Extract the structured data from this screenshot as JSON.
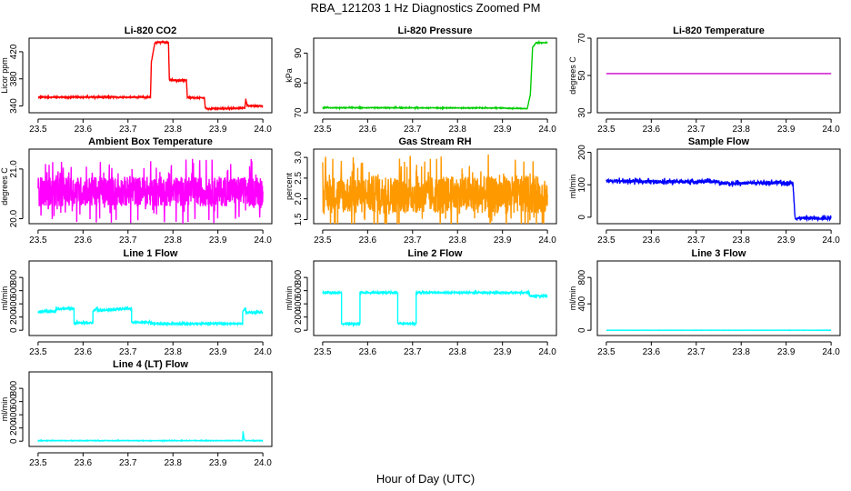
{
  "figure": {
    "main_title": "RBA_121203  1 Hz Diagnostics Zoomed PM",
    "x_label": "Hour of Day (UTC)"
  },
  "chart_data": [
    {
      "type": "line",
      "title": "Li-820 CO2",
      "ylabel": "Licor ppm",
      "color": "#ff0000",
      "xlim": [
        23.5,
        24.0
      ],
      "ylim": [
        330,
        440
      ],
      "x_ticks": [
        23.5,
        23.6,
        23.7,
        23.8,
        23.9,
        24.0
      ],
      "x_tick_labels": [
        "23.5",
        "23.6",
        "23.7",
        "23.8",
        "23.9",
        "24.0"
      ],
      "y_ticks": [
        340,
        380,
        420
      ],
      "y_tick_labels": [
        "340",
        "380",
        "420"
      ],
      "series": [
        {
          "x": [
            23.5,
            23.75,
            23.752,
            23.76,
            23.79,
            23.792,
            23.8,
            23.83,
            23.832,
            23.84,
            23.87,
            23.872,
            23.9,
            23.96,
            23.962,
            23.965,
            23.97,
            24.0
          ],
          "y": [
            353,
            353,
            405,
            434,
            434,
            379,
            378,
            378,
            353,
            352,
            352,
            336,
            336,
            337,
            350,
            341,
            340,
            340
          ],
          "noise": 0.8
        }
      ]
    },
    {
      "type": "line",
      "title": "Li-820 Pressure",
      "ylabel": "kPa",
      "color": "#00cc00",
      "xlim": [
        23.5,
        24.0
      ],
      "ylim": [
        70,
        95
      ],
      "x_ticks": [
        23.5,
        23.6,
        23.7,
        23.8,
        23.9,
        24.0
      ],
      "x_tick_labels": [
        "23.5",
        "23.6",
        "23.7",
        "23.8",
        "23.9",
        "24.0"
      ],
      "y_ticks": [
        70,
        80,
        90
      ],
      "y_tick_labels": [
        "70",
        "80",
        "90"
      ],
      "series": [
        {
          "x": [
            23.5,
            23.9,
            23.91,
            23.955,
            23.962,
            23.967,
            23.975,
            24.0
          ],
          "y": [
            71.7,
            71.6,
            71.5,
            71.4,
            76,
            92,
            93.5,
            93.5
          ],
          "noise": 0.1
        }
      ]
    },
    {
      "type": "line",
      "title": "Li-820 Temperature",
      "ylabel": "degrees C",
      "color": "#cc00cc",
      "xlim": [
        23.5,
        24.0
      ],
      "ylim": [
        30,
        70
      ],
      "x_ticks": [
        23.5,
        23.6,
        23.7,
        23.8,
        23.9,
        24.0
      ],
      "x_tick_labels": [
        "23.5",
        "23.6",
        "23.7",
        "23.8",
        "23.9",
        "24.0"
      ],
      "y_ticks": [
        30,
        50,
        70
      ],
      "y_tick_labels": [
        "30",
        "50",
        "70"
      ],
      "series": [
        {
          "x": [
            23.5,
            24.0
          ],
          "y": [
            51,
            51
          ],
          "noise": 0
        }
      ]
    },
    {
      "type": "line",
      "title": "Ambient Box Temperature",
      "ylabel": "degrees C",
      "color": "#ff00ff",
      "xlim": [
        23.5,
        24.0
      ],
      "ylim": [
        19.9,
        21.4
      ],
      "x_ticks": [
        23.5,
        23.6,
        23.7,
        23.8,
        23.9,
        24.0
      ],
      "x_tick_labels": [
        "23.5",
        "23.6",
        "23.7",
        "23.8",
        "23.9",
        "24.0"
      ],
      "y_ticks": [
        20.0,
        21.0
      ],
      "y_tick_labels": [
        "20.0",
        "21.0"
      ],
      "series": [
        {
          "x": [
            23.5,
            24.0
          ],
          "y": [
            20.55,
            20.55
          ],
          "noise": 0.3
        }
      ]
    },
    {
      "type": "line",
      "title": "Gas Stream RH",
      "ylabel": "percent",
      "color": "#ff9900",
      "xlim": [
        23.5,
        24.0
      ],
      "ylim": [
        1.4,
        3.2
      ],
      "x_ticks": [
        23.5,
        23.6,
        23.7,
        23.8,
        23.9,
        24.0
      ],
      "x_tick_labels": [
        "23.5",
        "23.6",
        "23.7",
        "23.8",
        "23.9",
        "24.0"
      ],
      "y_ticks": [
        1.5,
        2.0,
        2.5,
        3.0
      ],
      "y_tick_labels": [
        "1.5",
        "2.0",
        "2.5",
        "3.0"
      ],
      "series": [
        {
          "x": [
            23.5,
            24.0
          ],
          "y": [
            2.1,
            2.1
          ],
          "noise": 0.45
        }
      ]
    },
    {
      "type": "line",
      "title": "Sample Flow",
      "ylabel": "ml/min",
      "color": "#0000ff",
      "xlim": [
        23.5,
        24.0
      ],
      "ylim": [
        -20,
        210
      ],
      "x_ticks": [
        23.5,
        23.6,
        23.7,
        23.8,
        23.9,
        24.0
      ],
      "x_tick_labels": [
        "23.5",
        "23.6",
        "23.7",
        "23.8",
        "23.9",
        "24.0"
      ],
      "y_ticks": [
        0,
        100,
        200
      ],
      "y_tick_labels": [
        "0",
        "100",
        "200"
      ],
      "series": [
        {
          "x": [
            23.5,
            23.6,
            23.75,
            23.752,
            23.85,
            23.915,
            23.918,
            23.92,
            24.0
          ],
          "y": [
            112,
            110,
            110,
            104,
            106,
            106,
            40,
            -3,
            -3
          ],
          "noise": 5
        }
      ]
    },
    {
      "type": "line",
      "title": "Line 1 Flow",
      "ylabel": "ml/min",
      "color": "#00ffff",
      "xlim": [
        23.5,
        24.0
      ],
      "ylim": [
        -80,
        1050
      ],
      "x_ticks": [
        23.5,
        23.6,
        23.7,
        23.8,
        23.9,
        24.0
      ],
      "x_tick_labels": [
        "23.5",
        "23.6",
        "23.7",
        "23.8",
        "23.9",
        "24.0"
      ],
      "y_ticks": [
        0,
        200,
        400,
        600,
        800
      ],
      "y_tick_labels": [
        "0",
        "200",
        "400",
        "600",
        "800"
      ],
      "series": [
        {
          "x": [
            23.5,
            23.54,
            23.54,
            23.58,
            23.58,
            23.622,
            23.622,
            23.632,
            23.632,
            23.708,
            23.708,
            23.75,
            23.75,
            23.955,
            23.955,
            23.962,
            23.962,
            24.0
          ],
          "y": [
            280,
            290,
            330,
            330,
            110,
            110,
            280,
            340,
            300,
            330,
            120,
            120,
            100,
            100,
            280,
            340,
            270,
            270
          ],
          "noise": 12
        }
      ]
    },
    {
      "type": "line",
      "title": "Line 2 Flow",
      "ylabel": "ml/min",
      "color": "#00ffff",
      "xlim": [
        23.5,
        24.0
      ],
      "ylim": [
        -80,
        1050
      ],
      "x_ticks": [
        23.5,
        23.6,
        23.7,
        23.8,
        23.9,
        24.0
      ],
      "x_tick_labels": [
        "23.5",
        "23.6",
        "23.7",
        "23.8",
        "23.9",
        "24.0"
      ],
      "y_ticks": [
        0,
        200,
        400,
        600,
        800
      ],
      "y_tick_labels": [
        "0",
        "200",
        "400",
        "600",
        "800"
      ],
      "series": [
        {
          "x": [
            23.5,
            23.542,
            23.542,
            23.583,
            23.583,
            23.667,
            23.667,
            23.708,
            23.708,
            23.96,
            23.96,
            24.0
          ],
          "y": [
            570,
            570,
            100,
            100,
            570,
            570,
            100,
            100,
            570,
            570,
            520,
            520
          ],
          "noise": 10
        }
      ]
    },
    {
      "type": "line",
      "title": "Line 3 Flow",
      "ylabel": "ml/min",
      "color": "#00ffff",
      "xlim": [
        23.5,
        24.0
      ],
      "ylim": [
        -80,
        1050
      ],
      "x_ticks": [
        23.5,
        23.6,
        23.7,
        23.8,
        23.9,
        24.0
      ],
      "x_tick_labels": [
        "23.5",
        "23.6",
        "23.7",
        "23.8",
        "23.9",
        "24.0"
      ],
      "y_ticks": [
        0,
        400,
        800
      ],
      "y_tick_labels": [
        "0",
        "400",
        "800"
      ],
      "series": [
        {
          "x": [
            23.5,
            24.0
          ],
          "y": [
            0,
            0
          ],
          "noise": 1
        }
      ]
    },
    {
      "type": "line",
      "title": "Line 4 (LT) Flow",
      "ylabel": "ml/min",
      "color": "#00ffff",
      "xlim": [
        23.5,
        24.0
      ],
      "ylim": [
        -80,
        1050
      ],
      "x_ticks": [
        23.5,
        23.6,
        23.7,
        23.8,
        23.9,
        24.0
      ],
      "x_tick_labels": [
        "23.5",
        "23.6",
        "23.7",
        "23.8",
        "23.9",
        "24.0"
      ],
      "y_ticks": [
        0,
        200,
        400,
        600,
        800
      ],
      "y_tick_labels": [
        "0",
        "200",
        "400",
        "600",
        "800"
      ],
      "series": [
        {
          "x": [
            23.5,
            23.955,
            23.956,
            23.958,
            23.96,
            24.0
          ],
          "y": [
            8,
            8,
            150,
            40,
            8,
            8
          ],
          "noise": 3
        }
      ]
    }
  ]
}
